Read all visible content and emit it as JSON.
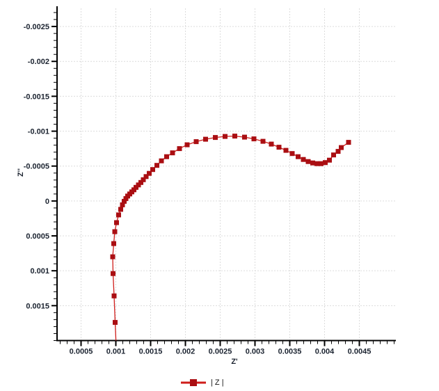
{
  "chart_data": {
    "type": "scatter",
    "title": "",
    "x_axis": {
      "label": "Z'",
      "min": 0.000155,
      "max": 0.005025,
      "major_tick_values": [
        0.0005,
        0.001,
        0.0015,
        0.002,
        0.0025,
        0.003,
        0.0035,
        0.004,
        0.0045
      ],
      "major_tick_labels": [
        "0.0005",
        "0.001",
        "0.0015",
        "0.002",
        "0.0025",
        "0.003",
        "0.0035",
        "0.004",
        "0.0045"
      ],
      "minor_step": 0.0001
    },
    "y_axis": {
      "label": "Z''",
      "top_value": -0.00276,
      "bottom_value": 0.002,
      "inverted": true,
      "major_tick_values": [
        -0.0025,
        -0.002,
        -0.0015,
        -0.001,
        -0.0005,
        0,
        0.0005,
        0.001,
        0.0015
      ],
      "major_tick_labels": [
        "-0.0025",
        "-0.002",
        "-0.0015",
        "-0.001",
        "-0.0005",
        "0",
        "0.0005",
        "0.001",
        "0.0015"
      ],
      "minor_step": 0.0001
    },
    "grid": {
      "show": true,
      "color": "#dcdcdc",
      "dash": "2 2"
    },
    "axis_color": "#000000",
    "tick_label_color": "#1b2330",
    "legend": {
      "label": "| Z |",
      "position": "bottom-center"
    },
    "series": [
      {
        "name": "| Z |",
        "line_color": "#cf1d1a",
        "marker_color": "#aa0e12",
        "marker": "square",
        "marker_size": 7,
        "points": [
          [
            0.001005,
            0.00208
          ],
          [
            0.00099,
            0.00174
          ],
          [
            0.000975,
            0.00136
          ],
          [
            0.00096,
            0.00104
          ],
          [
            0.000955,
            0.0008
          ],
          [
            0.00097,
            0.00061
          ],
          [
            0.000985,
            0.00044
          ],
          [
            0.00101,
            0.00031
          ],
          [
            0.00104,
            0.0002
          ],
          [
            0.00107,
            0.00012
          ],
          [
            0.001095,
            5.5e-05
          ],
          [
            0.00112,
            5e-06
          ],
          [
            0.001145,
            -3.5e-05
          ],
          [
            0.00117,
            -7e-05
          ],
          [
            0.0012,
            -0.0001
          ],
          [
            0.00123,
            -0.00013
          ],
          [
            0.00126,
            -0.00016
          ],
          [
            0.00129,
            -0.000195
          ],
          [
            0.001325,
            -0.00023
          ],
          [
            0.00136,
            -0.000265
          ],
          [
            0.001395,
            -0.000305
          ],
          [
            0.001435,
            -0.00035
          ],
          [
            0.00148,
            -0.000395
          ],
          [
            0.00153,
            -0.00045
          ],
          [
            0.00159,
            -0.00051
          ],
          [
            0.001655,
            -0.000575
          ],
          [
            0.00173,
            -0.000635
          ],
          [
            0.001815,
            -0.00069
          ],
          [
            0.001915,
            -0.00075
          ],
          [
            0.002025,
            -0.000805
          ],
          [
            0.002155,
            -0.00085
          ],
          [
            0.00229,
            -0.000885
          ],
          [
            0.00243,
            -0.00091
          ],
          [
            0.00257,
            -0.000925
          ],
          [
            0.00271,
            -0.00093
          ],
          [
            0.00285,
            -0.000915
          ],
          [
            0.002985,
            -0.00089
          ],
          [
            0.003115,
            -0.000855
          ],
          [
            0.003235,
            -0.000815
          ],
          [
            0.003345,
            -0.00077
          ],
          [
            0.003445,
            -0.000725
          ],
          [
            0.003535,
            -0.00068
          ],
          [
            0.00362,
            -0.000635
          ],
          [
            0.003695,
            -0.000595
          ],
          [
            0.003765,
            -0.000565
          ],
          [
            0.00383,
            -0.000545
          ],
          [
            0.00389,
            -0.000535
          ],
          [
            0.00395,
            -0.000535
          ],
          [
            0.00401,
            -0.00055
          ],
          [
            0.00407,
            -0.000585
          ],
          [
            0.00413,
            -0.00066
          ],
          [
            0.004195,
            -0.00071
          ],
          [
            0.00424,
            -0.000765
          ],
          [
            0.004345,
            -0.00084
          ]
        ]
      }
    ]
  }
}
